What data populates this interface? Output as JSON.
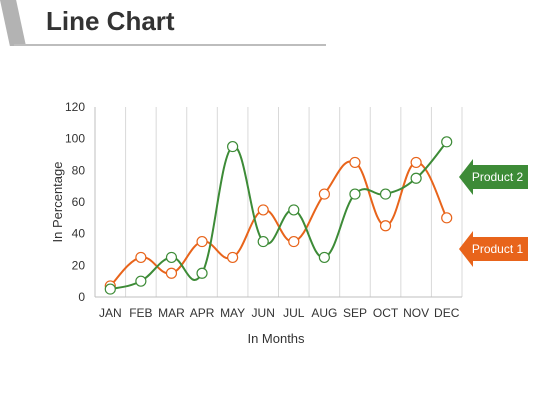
{
  "chart_data": {
    "type": "line",
    "title": "Line Chart",
    "xlabel": "In Months",
    "ylabel": "In Percentage",
    "categories": [
      "JAN",
      "FEB",
      "MAR",
      "APR",
      "MAY",
      "JUN",
      "JUL",
      "AUG",
      "SEP",
      "OCT",
      "NOV",
      "DEC"
    ],
    "ylim": [
      0,
      120
    ],
    "yticks": [
      0,
      20,
      40,
      60,
      80,
      100,
      120
    ],
    "grid": "vertical",
    "series": [
      {
        "name": "Product 1",
        "color": "#e8641b",
        "values": [
          7,
          25,
          15,
          35,
          25,
          55,
          35,
          65,
          85,
          45,
          85,
          50
        ]
      },
      {
        "name": "Product 2",
        "color": "#3d8b37",
        "values": [
          5,
          10,
          25,
          15,
          95,
          35,
          55,
          25,
          65,
          65,
          75,
          98
        ]
      }
    ]
  }
}
